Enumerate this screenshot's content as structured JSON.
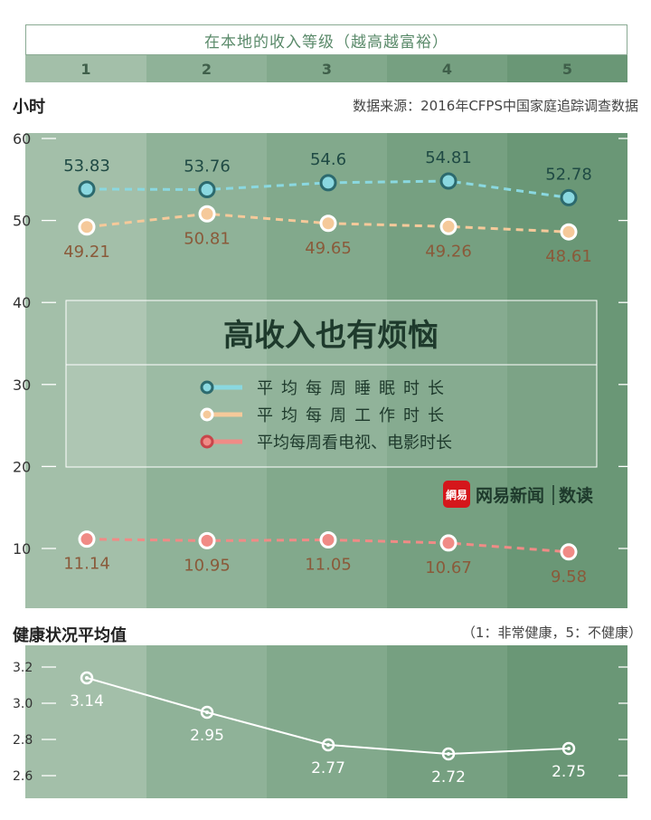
{
  "header": {
    "title": "在本地的收入等级（越高越富裕）",
    "levels": [
      "1",
      "2",
      "3",
      "4",
      "5"
    ]
  },
  "top_chart": {
    "ylabel": "小时",
    "source": "数据来源：2016年CFPS中国家庭追踪调查数据",
    "legend_title": "高收入也有烦恼",
    "brand": "网易新闻",
    "brand_sub": "数读",
    "logo_text": "網易"
  },
  "bottom_chart": {
    "title": "健康状况平均值",
    "note": "（1：非常健康，5：不健康）"
  },
  "colors": {
    "band": [
      "#a3bfa9",
      "#8fb298",
      "#82a98c",
      "#76a081",
      "#6a9776"
    ],
    "sleep": "#8ad8e0",
    "sleep_dark": "#2c6a6e",
    "work": "#f5c99a",
    "tv": "#f08b86",
    "label_text_dark": "#1f4a44",
    "label_text_brown": "#8a5a3a",
    "brand_red": "#d5161b"
  },
  "chart_data": [
    {
      "type": "line",
      "categories": [
        "1",
        "2",
        "3",
        "4",
        "5"
      ],
      "ylim": [
        0,
        60
      ],
      "yticks": [
        10,
        20,
        30,
        40,
        50,
        60
      ],
      "ylabel": "小时",
      "series": [
        {
          "name": "平均每周睡眠时长",
          "key": "sleep",
          "values": [
            53.83,
            53.76,
            54.6,
            54.81,
            52.78
          ],
          "labels": [
            "53.83",
            "53.76",
            "54.6",
            "54.81",
            "52.78"
          ]
        },
        {
          "name": "平均每周工作时长",
          "key": "work",
          "values": [
            49.21,
            50.81,
            49.65,
            49.26,
            48.61
          ],
          "labels": [
            "49.21",
            "50.81",
            "49.65",
            "49.26",
            "48.61"
          ]
        },
        {
          "name": "平均每周看电视、电影时长",
          "key": "tv",
          "values": [
            11.14,
            10.95,
            11.05,
            10.67,
            9.58
          ],
          "labels": [
            "11.14",
            "10.95",
            "11.05",
            "10.67",
            "9.58"
          ]
        }
      ]
    },
    {
      "type": "line",
      "title": "健康状况平均值",
      "categories": [
        "1",
        "2",
        "3",
        "4",
        "5"
      ],
      "ylim": [
        2.5,
        3.3
      ],
      "yticks": [
        2.6,
        2.8,
        3.0,
        3.2
      ],
      "ytick_labels": [
        "2.6",
        "2.8",
        "3.0",
        "3.2"
      ],
      "series": [
        {
          "values": [
            3.14,
            2.95,
            2.77,
            2.72,
            2.75
          ],
          "labels": [
            "3.14",
            "2.95",
            "2.77",
            "2.72",
            "2.75"
          ]
        }
      ]
    }
  ]
}
